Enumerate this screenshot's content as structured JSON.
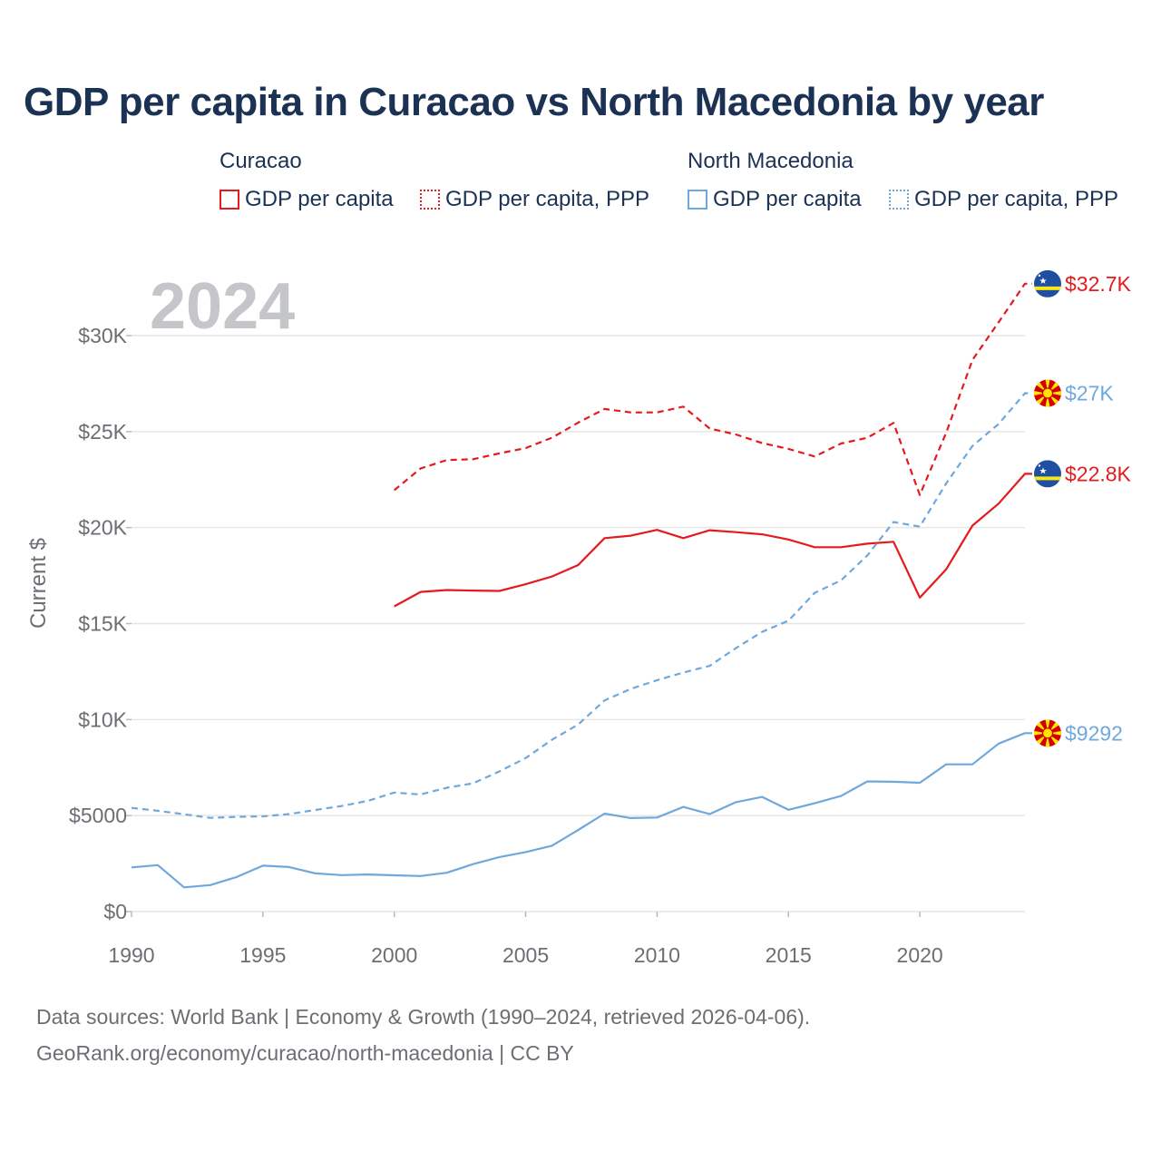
{
  "chart_data": {
    "type": "line",
    "title": "GDP per capita in Curacao vs North Macedonia by year",
    "year_label": "2024",
    "ylabel": "Current $",
    "xlabel": "",
    "xlim": [
      1990,
      2024
    ],
    "ylim": [
      0,
      33000
    ],
    "x_ticks": [
      1990,
      1995,
      2000,
      2005,
      2010,
      2015,
      2020
    ],
    "y_ticks": [
      {
        "value": 0,
        "label": "$0"
      },
      {
        "value": 5000,
        "label": "$5000"
      },
      {
        "value": 10000,
        "label": "$10K"
      },
      {
        "value": 15000,
        "label": "$15K"
      },
      {
        "value": 20000,
        "label": "$20K"
      },
      {
        "value": 25000,
        "label": "$25K"
      },
      {
        "value": 30000,
        "label": "$30K"
      }
    ],
    "series": [
      {
        "key": "cw_gdp",
        "country": "Curacao",
        "name": "GDP per capita",
        "color": "#e41a1c",
        "style": "solid",
        "flag": "curacao-flag",
        "end_label": "$22.8K",
        "x": [
          2000,
          2001,
          2002,
          2003,
          2004,
          2005,
          2006,
          2007,
          2008,
          2009,
          2010,
          2011,
          2012,
          2013,
          2014,
          2015,
          2016,
          2017,
          2018,
          2019,
          2020,
          2021,
          2022,
          2023,
          2024
        ],
        "values": [
          15900,
          16650,
          16750,
          16720,
          16700,
          17050,
          17450,
          18050,
          19450,
          19580,
          19880,
          19450,
          19860,
          19760,
          19650,
          19380,
          18980,
          18980,
          19160,
          19260,
          16350,
          17820,
          20100,
          21250,
          22800
        ]
      },
      {
        "key": "cw_ppp",
        "country": "Curacao",
        "name": "GDP per capita, PPP",
        "color": "#e41a1c",
        "style": "dashed",
        "flag": "curacao-flag",
        "end_label": "$32.7K",
        "x": [
          2000,
          2001,
          2002,
          2003,
          2004,
          2005,
          2006,
          2007,
          2008,
          2009,
          2010,
          2011,
          2012,
          2013,
          2014,
          2015,
          2016,
          2017,
          2018,
          2019,
          2020,
          2021,
          2022,
          2023,
          2024
        ],
        "values": [
          21950,
          23080,
          23520,
          23560,
          23870,
          24140,
          24680,
          25470,
          26180,
          26000,
          26000,
          26300,
          25160,
          24850,
          24400,
          24100,
          23700,
          24380,
          24680,
          25450,
          21700,
          24930,
          28730,
          30700,
          32700
        ]
      },
      {
        "key": "mk_gdp",
        "country": "North Macedonia",
        "name": "GDP per capita",
        "color": "#6fa8dc",
        "style": "solid",
        "flag": "north-macedonia-flag",
        "end_label": "$9292",
        "x": [
          1990,
          1991,
          1992,
          1993,
          1994,
          1995,
          1996,
          1997,
          1998,
          1999,
          2000,
          2001,
          2002,
          2003,
          2004,
          2005,
          2006,
          2007,
          2008,
          2009,
          2010,
          2011,
          2012,
          2013,
          2014,
          2015,
          2016,
          2017,
          2018,
          2019,
          2020,
          2021,
          2022,
          2023,
          2024
        ],
        "values": [
          2300,
          2420,
          1260,
          1380,
          1800,
          2390,
          2320,
          1990,
          1900,
          1930,
          1890,
          1850,
          2020,
          2470,
          2840,
          3100,
          3430,
          4250,
          5100,
          4870,
          4900,
          5450,
          5080,
          5700,
          5970,
          5300,
          5640,
          6020,
          6780,
          6760,
          6710,
          7670,
          7670,
          8750,
          9292
        ]
      },
      {
        "key": "mk_ppp",
        "country": "North Macedonia",
        "name": "GDP per capita, PPP",
        "color": "#6fa8dc",
        "style": "dashed",
        "flag": "north-macedonia-flag",
        "end_label": "$27K",
        "x": [
          1990,
          1991,
          1992,
          1993,
          1994,
          1995,
          1996,
          1997,
          1998,
          1999,
          2000,
          2001,
          2002,
          2003,
          2004,
          2005,
          2006,
          2007,
          2008,
          2009,
          2010,
          2011,
          2012,
          2013,
          2014,
          2015,
          2016,
          2017,
          2018,
          2019,
          2020,
          2021,
          2022,
          2023,
          2024
        ],
        "values": [
          5400,
          5250,
          5070,
          4880,
          4930,
          4960,
          5080,
          5290,
          5500,
          5770,
          6200,
          6100,
          6450,
          6680,
          7300,
          8000,
          8950,
          9740,
          11000,
          11600,
          12050,
          12450,
          12800,
          13720,
          14570,
          15150,
          16600,
          17250,
          18550,
          20290,
          20050,
          22300,
          24250,
          25400,
          27000
        ]
      }
    ]
  },
  "legend": {
    "groups": [
      {
        "country": "Curacao",
        "items": [
          {
            "label": "GDP per capita",
            "color": "#e41a1c",
            "style": "solid"
          },
          {
            "label": "GDP per capita, PPP",
            "color": "#e41a1c",
            "style": "dotted"
          }
        ]
      },
      {
        "country": "North Macedonia",
        "items": [
          {
            "label": "GDP per capita",
            "color": "#6fa8dc",
            "style": "solid"
          },
          {
            "label": "GDP per capita, PPP",
            "color": "#6fa8dc",
            "style": "dotted"
          }
        ]
      }
    ]
  },
  "footer": {
    "line1": "Data sources: World Bank | Economy & Growth (1990–2024, retrieved 2026-04-06).",
    "line2": "GeoRank.org/economy/curacao/north-macedonia | CC BY"
  }
}
